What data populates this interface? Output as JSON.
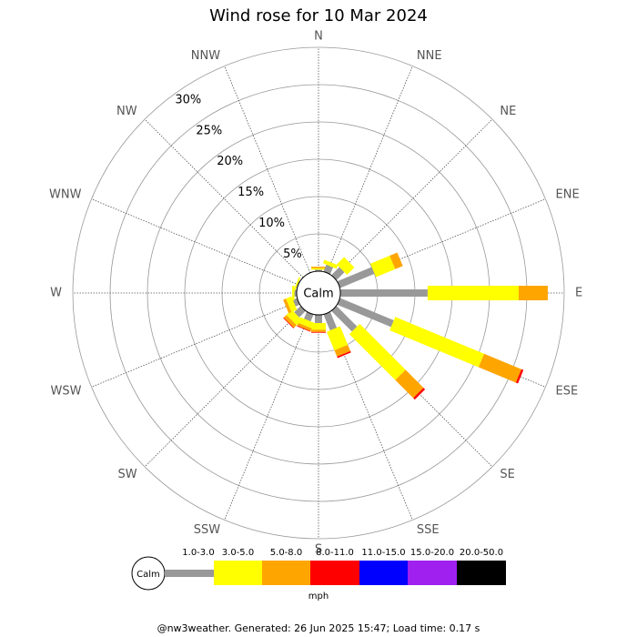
{
  "chart_data": {
    "type": "windrose",
    "title": "Wind rose for 10 Mar 2024",
    "directions": [
      "N",
      "NNE",
      "NE",
      "ENE",
      "E",
      "ESE",
      "SE",
      "SSE",
      "S",
      "SSW",
      "SW",
      "WSW",
      "W",
      "WNW",
      "NW",
      "NNW"
    ],
    "series": [
      {
        "name": "1.0-3.0",
        "color": "#999999",
        "values": [
          0.2,
          1.0,
          1.5,
          5.0,
          11.7,
          7.8,
          3.9,
          2.3,
          1.1,
          1.0,
          1.2,
          0.6,
          0.3,
          0.1,
          0,
          0
        ]
      },
      {
        "name": "3.0-5.0",
        "color": "#ffff00",
        "values": [
          0.2,
          0.5,
          1.4,
          2.8,
          12.2,
          12.9,
          8.7,
          2.7,
          0.9,
          0.8,
          1.0,
          0.8,
          0.3,
          0.2,
          0,
          0
        ]
      },
      {
        "name": "5.0-8.0",
        "color": "#ffa500",
        "values": [
          0.2,
          0,
          0,
          1.1,
          3.9,
          5.4,
          3.4,
          0.9,
          0.3,
          0.4,
          0.5,
          0.4,
          0,
          0,
          0,
          0
        ]
      },
      {
        "name": "8.0-11.0",
        "color": "#ff0000",
        "values": [
          0,
          0,
          0,
          0,
          0,
          0.3,
          0.3,
          0.2,
          0.1,
          0.1,
          0.1,
          0,
          0,
          0,
          0,
          0
        ]
      },
      {
        "name": "11.0-15.0",
        "color": "#0000ff",
        "values": [
          0,
          0,
          0,
          0,
          0,
          0,
          0,
          0,
          0,
          0,
          0,
          0,
          0,
          0,
          0,
          0
        ]
      },
      {
        "name": "15.0-20.0",
        "color": "#a020f0",
        "values": [
          0,
          0,
          0,
          0,
          0,
          0,
          0,
          0,
          0,
          0,
          0,
          0,
          0,
          0,
          0,
          0
        ]
      },
      {
        "name": "20.0-50.0",
        "color": "#000000",
        "values": [
          0,
          0,
          0,
          0,
          0,
          0,
          0,
          0,
          0,
          0,
          0,
          0,
          0,
          0,
          0,
          0
        ]
      }
    ],
    "rlim": [
      0,
      30
    ],
    "rticks": [
      {
        "value": 5,
        "label": "5%"
      },
      {
        "value": 10,
        "label": "10%"
      },
      {
        "value": 15,
        "label": "15%"
      },
      {
        "value": 20,
        "label": "20%"
      },
      {
        "value": 25,
        "label": "25%"
      },
      {
        "value": 30,
        "label": "30%"
      }
    ],
    "calm_label": "Calm",
    "unit": "mph"
  },
  "footer": "@nw3weather. Generated: 26 Jun 2025 15:47; Load time: 0.17 s"
}
